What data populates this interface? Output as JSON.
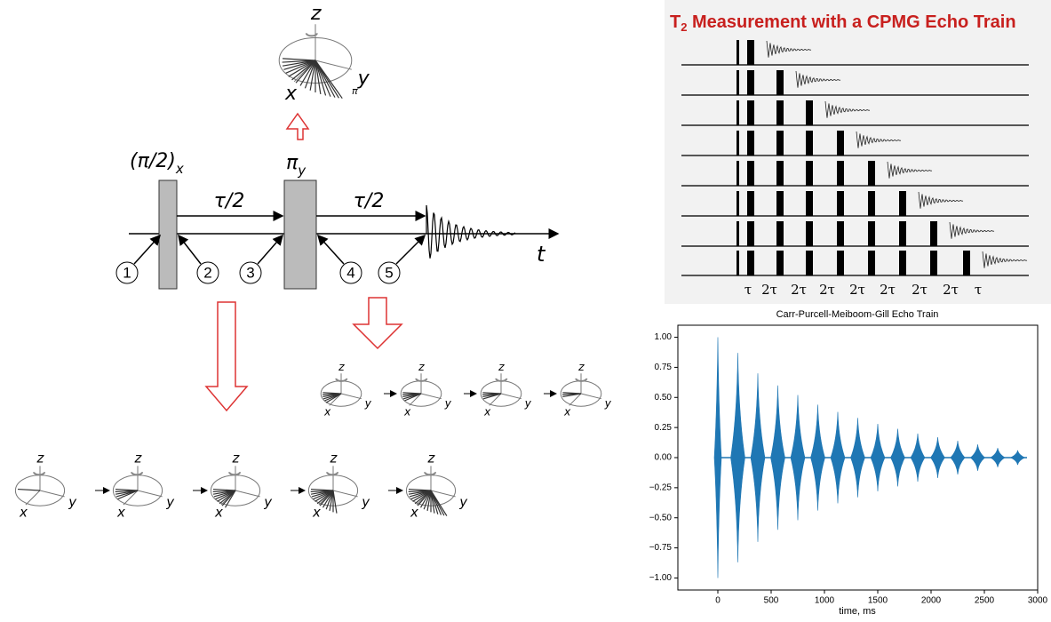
{
  "diagram": {
    "pulse1": {
      "label": "(π/2)",
      "sub": "x"
    },
    "pulse2": {
      "label": "π",
      "sub": "y"
    },
    "delay1": "τ/2",
    "delay2": "τ/2",
    "time_axis": "t",
    "points": [
      "1",
      "2",
      "3",
      "4",
      "5"
    ],
    "bloch": {
      "z": "z",
      "x": "x",
      "y": "y",
      "pi": "π"
    }
  },
  "cpmg": {
    "title": {
      "main": "T",
      "sub": "2",
      "rest": " Measurement with a CPMG Echo Train"
    },
    "intervals": [
      "τ",
      "2τ",
      "2τ",
      "2τ",
      "2τ",
      "2τ",
      "2τ",
      "2τ",
      "τ"
    ]
  },
  "chart_data": {
    "type": "echo",
    "title": "Carr-Purcell-Meiboom-Gill Echo Train",
    "x_label": "time, ms",
    "color": "#1f77b4",
    "x": [
      0,
      187.5,
      375,
      562.5,
      750,
      937.5,
      1125,
      1312.5,
      1500,
      1687.5,
      1875,
      2062.5,
      2250,
      2437.5,
      2625,
      2812.5
    ],
    "values": [
      1.0,
      0.87,
      0.7,
      0.6,
      0.52,
      0.44,
      0.38,
      0.33,
      0.28,
      0.24,
      0.2,
      0.17,
      0.14,
      0.11,
      0.08,
      0.06
    ],
    "xlim": [
      -375,
      3000
    ],
    "ylim": [
      -1.1,
      1.1
    ],
    "xticks": [
      0,
      500,
      1000,
      1500,
      2000,
      2500,
      3000
    ],
    "yticks": [
      {
        "value": 1,
        "label": "1.00"
      },
      {
        "value": 0.75,
        "label": "0.75"
      },
      {
        "value": 0.5,
        "label": "0.50"
      },
      {
        "value": 0.25,
        "label": "0.25"
      },
      {
        "value": 0,
        "label": "0.00"
      },
      {
        "value": -0.25,
        "label": "−0.25"
      },
      {
        "value": -0.5,
        "label": "−0.50"
      },
      {
        "value": -0.75,
        "label": "−0.75"
      },
      {
        "value": -1,
        "label": "−1.00"
      }
    ]
  }
}
